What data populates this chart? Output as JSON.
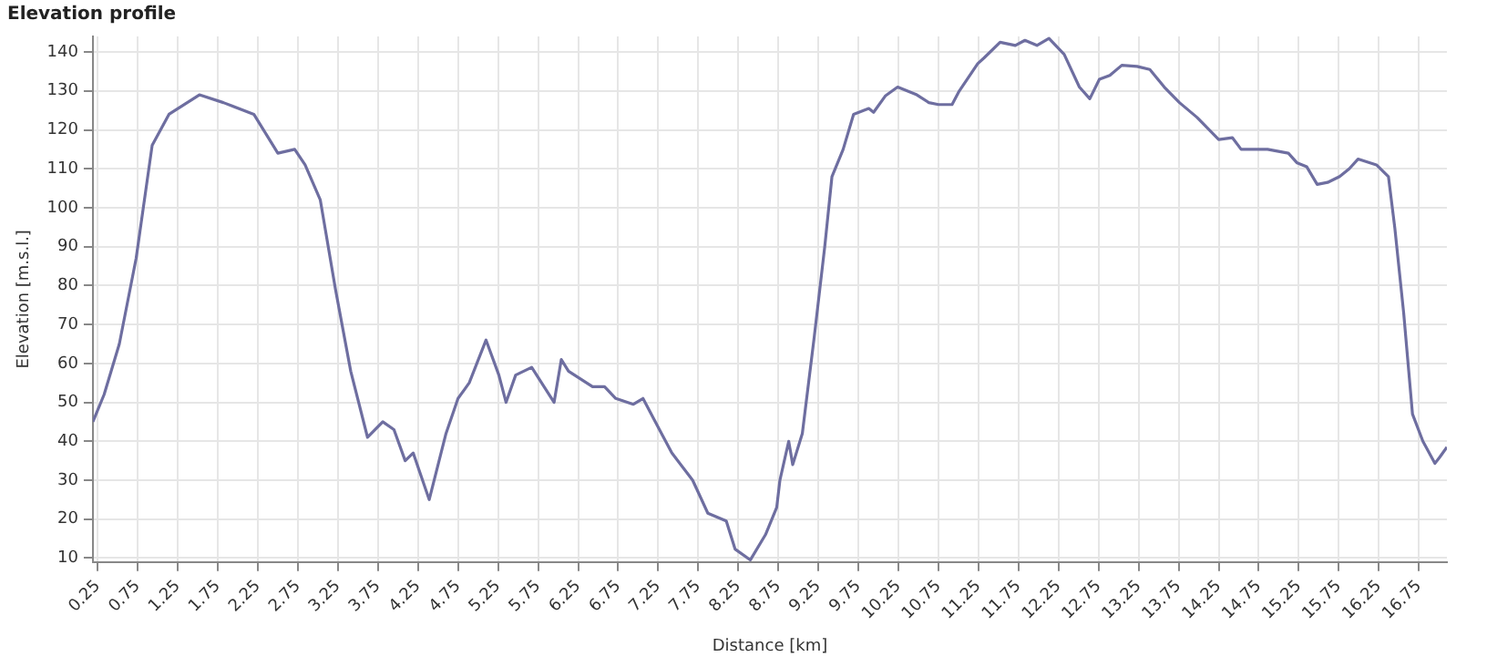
{
  "chart_data": {
    "type": "line",
    "title": "Elevation profile",
    "xlabel": "Distance [km]",
    "ylabel": "Elevation [m.s.l.]",
    "xlim": [
      0.19,
      17.1
    ],
    "ylim": [
      9,
      144
    ],
    "xticks": [
      0.25,
      0.75,
      1.25,
      1.75,
      2.25,
      2.75,
      3.25,
      3.75,
      4.25,
      4.75,
      5.25,
      5.75,
      6.25,
      6.75,
      7.25,
      7.75,
      8.25,
      8.75,
      9.25,
      9.75,
      10.25,
      10.75,
      11.25,
      11.75,
      12.25,
      12.75,
      13.25,
      13.75,
      14.25,
      14.75,
      15.25,
      15.75,
      16.25,
      16.75
    ],
    "yticks": [
      10,
      20,
      30,
      40,
      50,
      60,
      70,
      80,
      90,
      100,
      110,
      120,
      130,
      140
    ],
    "grid": true,
    "legend": false,
    "marker": "none",
    "line_style": "solid",
    "series": [
      {
        "color": "#6e6ea0",
        "x": [
          0.19,
          0.33,
          0.52,
          0.73,
          0.93,
          1.14,
          1.52,
          1.82,
          2.2,
          2.5,
          2.71,
          2.84,
          3.03,
          3.22,
          3.41,
          3.62,
          3.81,
          3.95,
          4.09,
          4.19,
          4.39,
          4.6,
          4.75,
          4.89,
          5.1,
          5.26,
          5.35,
          5.47,
          5.67,
          5.95,
          6.04,
          6.13,
          6.43,
          6.58,
          6.72,
          6.94,
          7.06,
          7.24,
          7.42,
          7.68,
          7.87,
          8.1,
          8.21,
          8.4,
          8.59,
          8.73,
          8.77,
          8.88,
          8.93,
          9.05,
          9.2,
          9.33,
          9.42,
          9.56,
          9.69,
          9.88,
          9.94,
          10.09,
          10.24,
          10.48,
          10.63,
          10.75,
          10.92,
          11.01,
          11.24,
          11.32,
          11.52,
          11.71,
          11.83,
          11.98,
          12.13,
          12.32,
          12.51,
          12.64,
          12.76,
          12.89,
          13.04,
          13.23,
          13.39,
          13.57,
          13.76,
          13.98,
          14.25,
          14.42,
          14.53,
          14.86,
          15.12,
          15.23,
          15.35,
          15.48,
          15.61,
          15.76,
          15.88,
          15.99,
          16.22,
          16.37,
          16.45,
          16.56,
          16.67,
          16.8,
          16.95,
          17.01,
          17.1
        ],
        "values": [
          45,
          52,
          65,
          87,
          116,
          124,
          129,
          127,
          124,
          114,
          115,
          111,
          102,
          79,
          58,
          41,
          45,
          43,
          35,
          37,
          25,
          42,
          51,
          55,
          66,
          57,
          50,
          57,
          59,
          50,
          61,
          58,
          54,
          54,
          51,
          49.5,
          51,
          44,
          37,
          30,
          21.5,
          19.5,
          12.3,
          9.5,
          16,
          23,
          30,
          40,
          34,
          42,
          67,
          90,
          108,
          115,
          124,
          125.5,
          124.5,
          128.8,
          131,
          129,
          127,
          126.5,
          126.5,
          130,
          137,
          138.5,
          142.5,
          141.7,
          143,
          141.7,
          143.5,
          139.4,
          131,
          128,
          133,
          134,
          136.6,
          136.3,
          135.5,
          131,
          127,
          123.2,
          117.5,
          118,
          115,
          115,
          114,
          111.5,
          110.5,
          106,
          106.5,
          108,
          110,
          112.5,
          111,
          108,
          94.7,
          73,
          47,
          40,
          34.3,
          35.9,
          38.5
        ]
      }
    ]
  }
}
